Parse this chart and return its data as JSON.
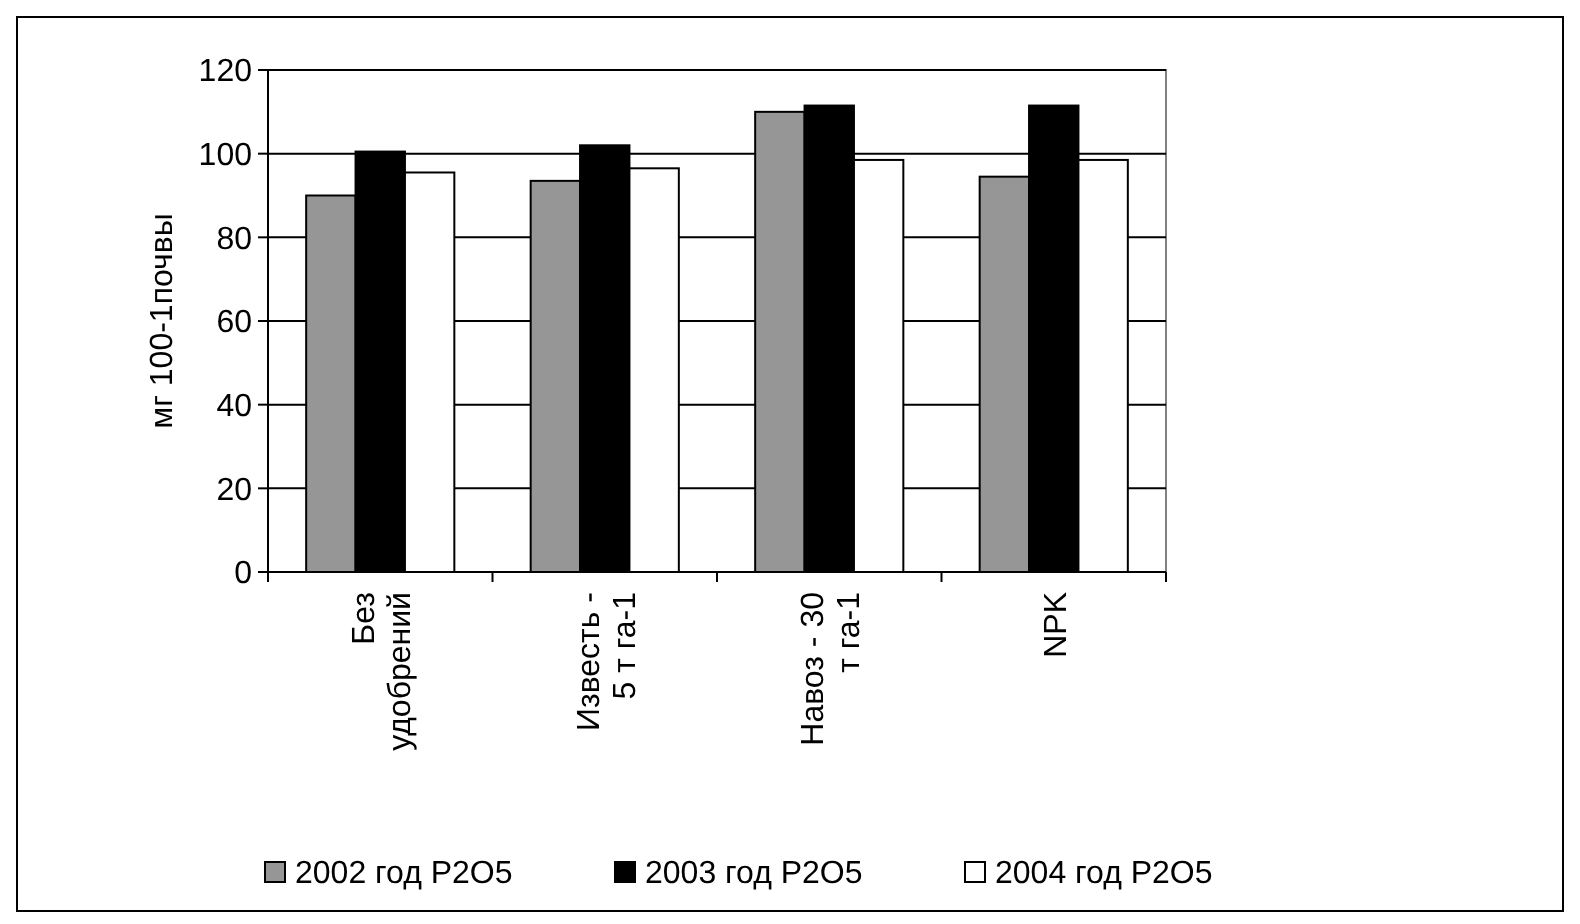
{
  "chart_data": {
    "type": "bar",
    "ylabel": "мг 100-1почвы",
    "categories": [
      "Без\nудобрений",
      "Известь -\n5 т га-1",
      "Навоз - 30\nт га-1",
      "NPK"
    ],
    "series": [
      {
        "name": "2002 год P2O5",
        "color": "#969696",
        "values": [
          90,
          93.5,
          110,
          94.5
        ]
      },
      {
        "name": "2003 год P2O5",
        "color": "#000000",
        "values": [
          100.5,
          102,
          111.5,
          111.5
        ]
      },
      {
        "name": "2004 год P2O5",
        "color": "#ffffff",
        "values": [
          95.5,
          96.5,
          98.5,
          98.5
        ]
      }
    ],
    "ylim": [
      0,
      120
    ],
    "yticks": [
      0,
      20,
      40,
      60,
      80,
      100,
      120
    ],
    "grid": "y",
    "legend": "bottom"
  }
}
